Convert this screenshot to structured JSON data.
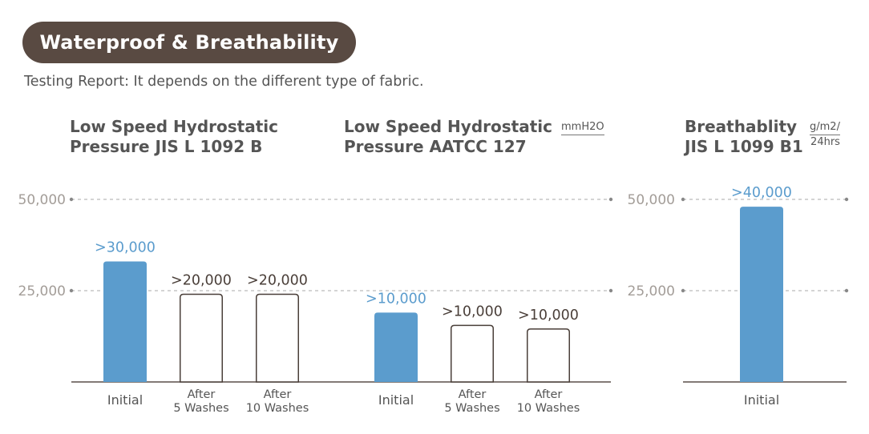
{
  "header": {
    "badge": "Waterproof & Breathability",
    "subtitle": "Testing Report: It depends on the different type of fabric."
  },
  "colors": {
    "badge_bg": "#594a42",
    "bar_filled": "#5b9ccd",
    "bar_outline": "#4a3f39",
    "label_highlight": "#5b9ccd",
    "text": "#555555",
    "grid": "#aaaaaa"
  },
  "chart_data": [
    {
      "type": "bar",
      "title_lines": [
        "Low Speed Hydrostatic",
        "Pressure JIS L 1092 B"
      ],
      "unit": "",
      "categories": [
        [
          "Initial"
        ],
        [
          "After",
          "5 Washes"
        ],
        [
          "After",
          "10 Washes"
        ]
      ],
      "values": [
        33000,
        24000,
        24000
      ],
      "value_labels": [
        ">30,000",
        ">20,000",
        ">20,000"
      ],
      "filled": [
        true,
        false,
        false
      ],
      "yticks": [
        "50,000",
        "25,000"
      ],
      "ylim": [
        0,
        50000
      ],
      "grid": true
    },
    {
      "type": "bar",
      "title_lines": [
        "Low Speed Hydrostatic",
        "Pressure AATCC 127"
      ],
      "unit": "mmH2O",
      "categories": [
        [
          "Initial"
        ],
        [
          "After",
          "5 Washes"
        ],
        [
          "After",
          "10 Washes"
        ]
      ],
      "values": [
        19000,
        15500,
        14500
      ],
      "value_labels": [
        ">10,000",
        ">10,000",
        ">10,000"
      ],
      "filled": [
        true,
        false,
        false
      ],
      "ylim": [
        0,
        50000
      ],
      "grid": true
    },
    {
      "type": "bar",
      "title_lines": [
        "Breathablity",
        "JIS L 1099 B1"
      ],
      "unit_lines": [
        "g/m2/",
        "24hrs"
      ],
      "categories": [
        [
          "Initial"
        ]
      ],
      "values": [
        48000
      ],
      "value_labels": [
        ">40,000"
      ],
      "filled": [
        true
      ],
      "yticks": [
        "50,000",
        "25,000"
      ],
      "ylim": [
        0,
        50000
      ],
      "grid": true
    }
  ]
}
